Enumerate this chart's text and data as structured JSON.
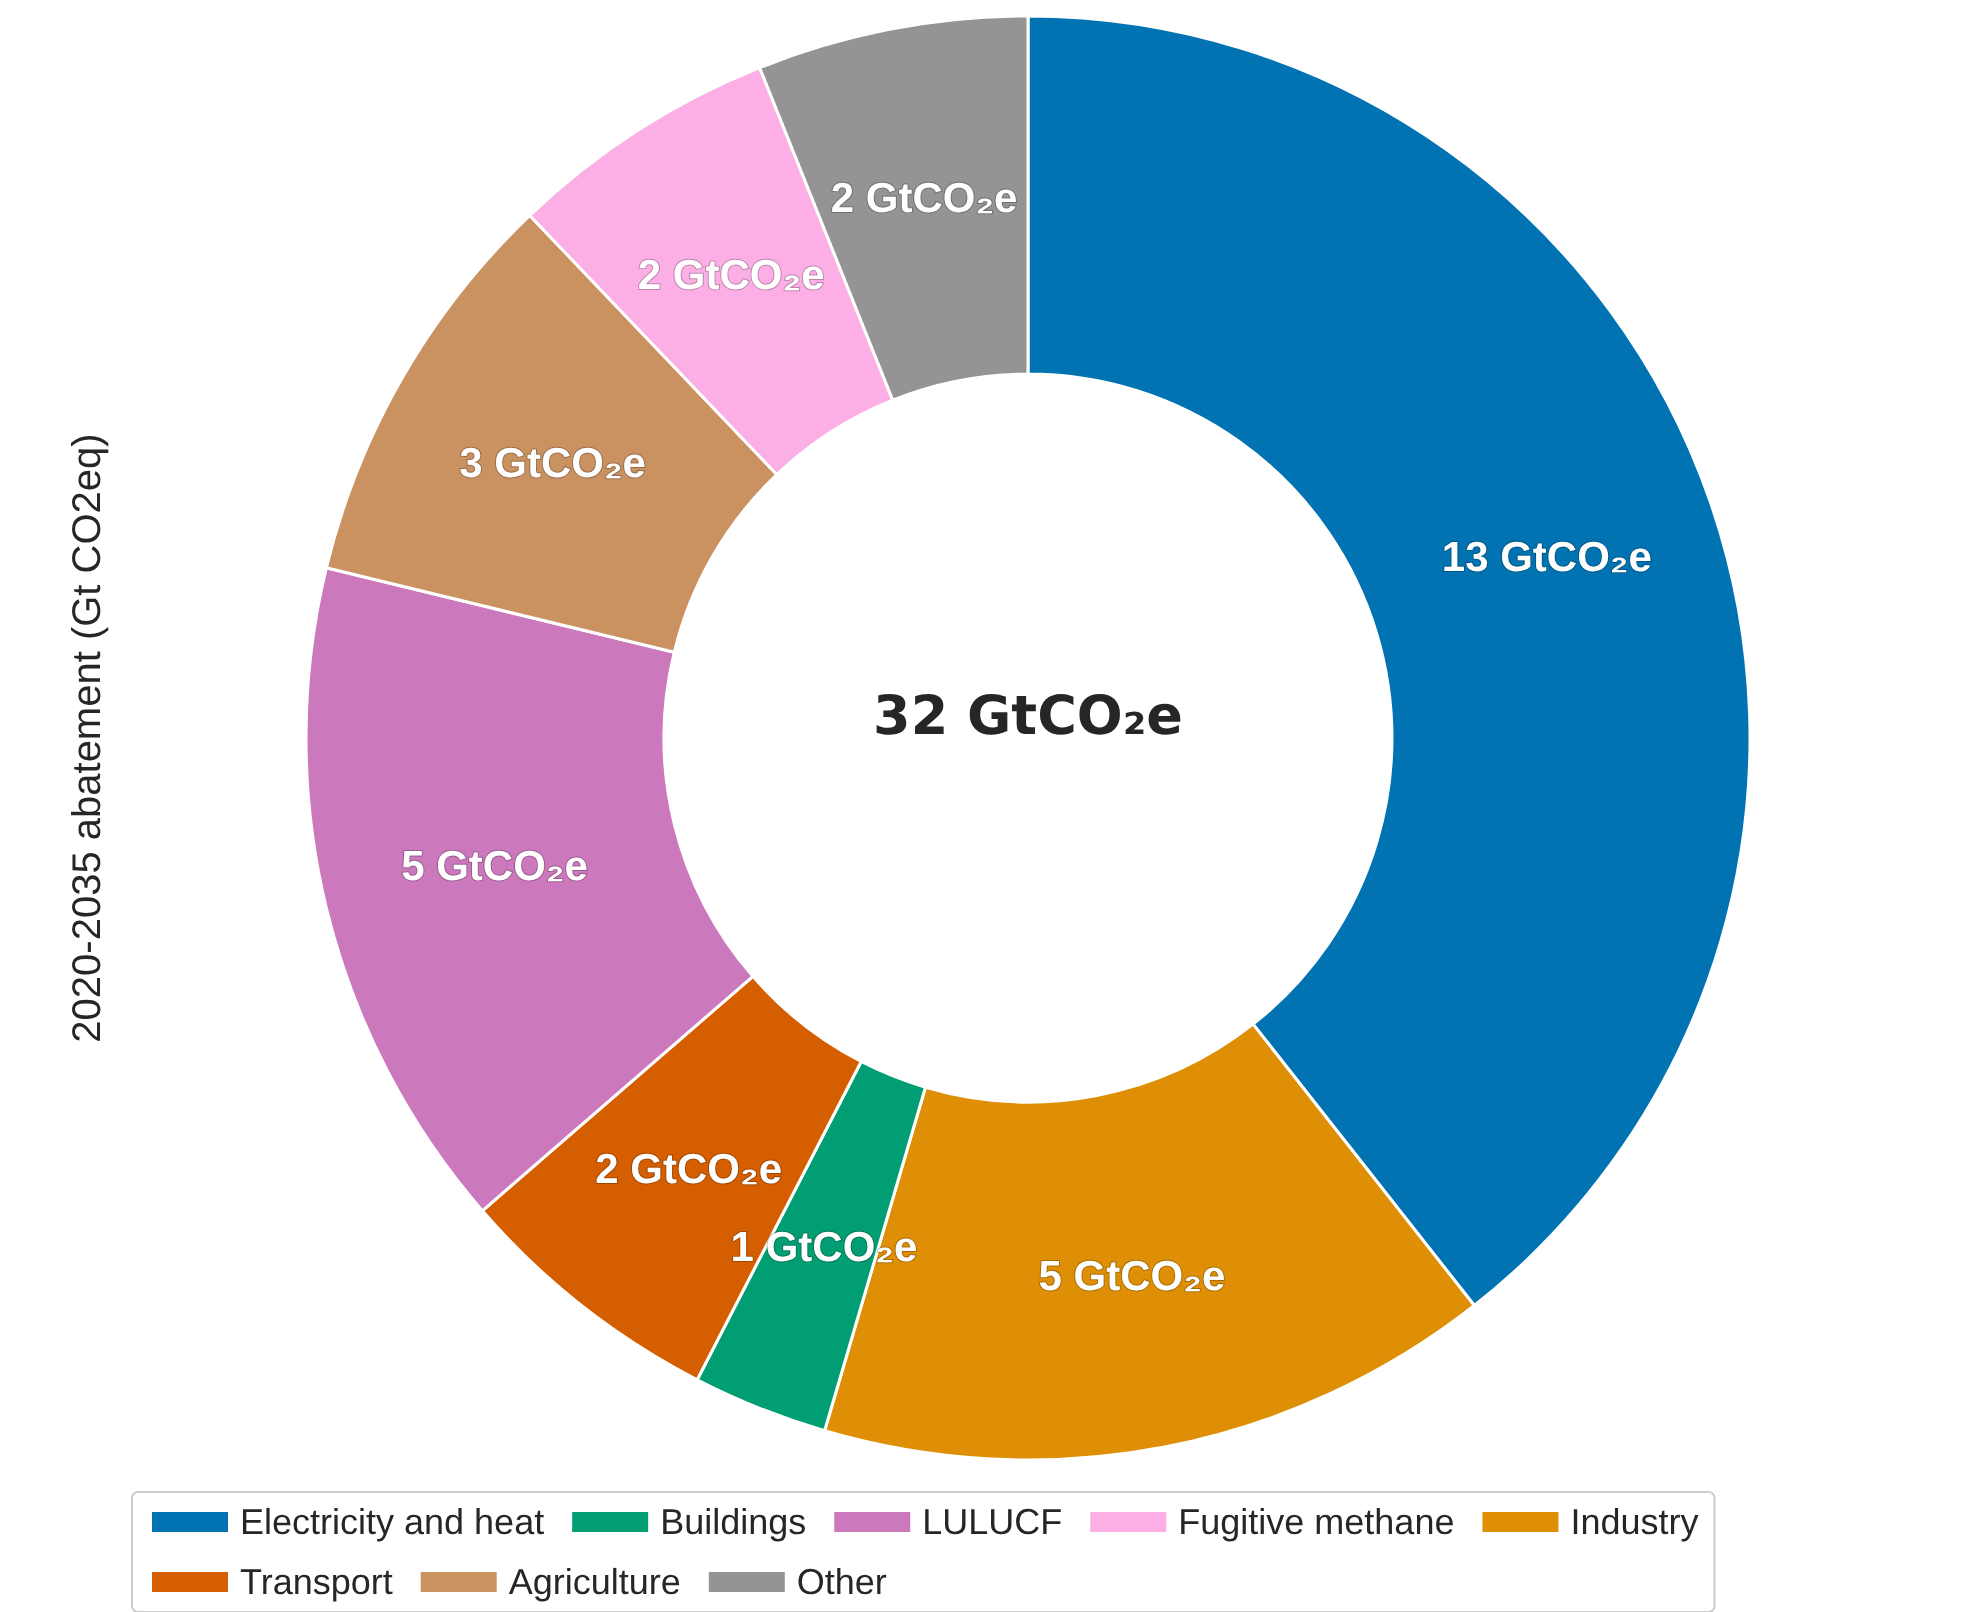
{
  "chart_data": {
    "type": "donut",
    "ylabel": "2020-2035 abatement (Gt CO2eq)",
    "categories": [
      "Electricity and heat",
      "Industry",
      "Buildings",
      "Transport",
      "LULUCF",
      "Agriculture",
      "Fugitive methane",
      "Other"
    ],
    "values": [
      13,
      5,
      1,
      2,
      5,
      3,
      2,
      2
    ],
    "value_labels": [
      "13 GtCO₂e",
      "5 GtCO₂e",
      "1 GtCO₂e",
      "2 GtCO₂e",
      "5 GtCO₂e",
      "3 GtCO₂e",
      "2 GtCO₂e",
      "2 GtCO₂e"
    ],
    "colors": [
      "#0173b2",
      "#de8f05",
      "#029e73",
      "#d55e00",
      "#cc78bc",
      "#ca9161",
      "#fbafe4",
      "#949494"
    ],
    "annotations": [
      "32 GtCO₂e"
    ],
    "legend": "bottom"
  }
}
